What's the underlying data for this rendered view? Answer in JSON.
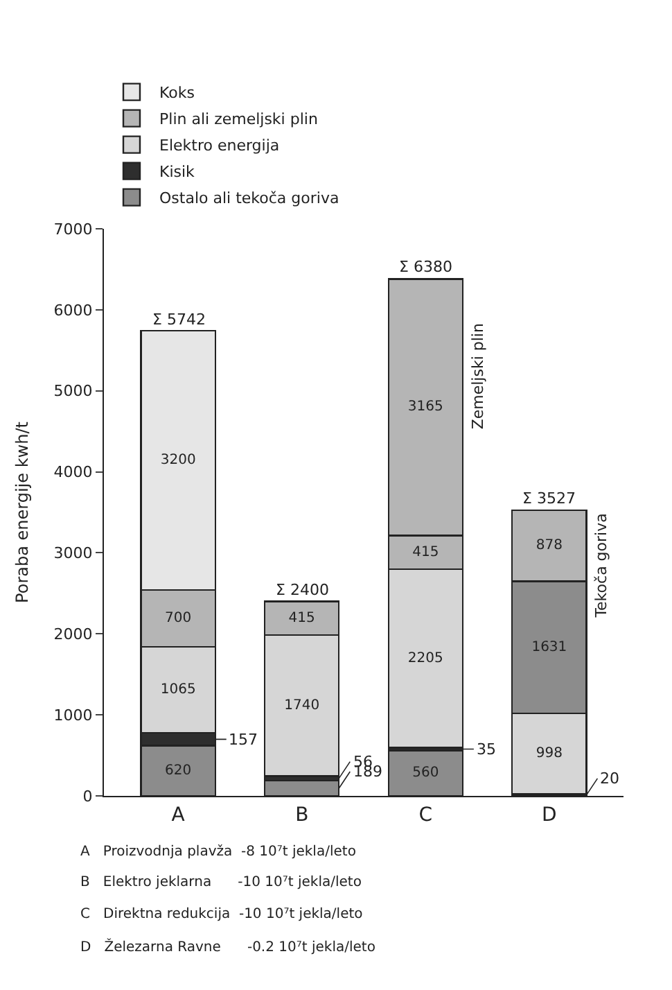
{
  "chart_data": {
    "type": "bar",
    "stacked": true,
    "ylabel": "Poraba energije kwh/t",
    "categories": [
      "A",
      "B",
      "C",
      "D"
    ],
    "series": [
      {
        "name": "Ostalo ali tekoča goriva",
        "color": "#8c8c8c",
        "values": [
          620,
          189,
          560,
          null
        ]
      },
      {
        "name": "Kisik",
        "color": "#2e2e2e",
        "values": [
          157,
          56,
          35,
          20
        ]
      },
      {
        "name": "Elektro energija",
        "color": "#d6d6d6",
        "values": [
          1065,
          1740,
          2205,
          998
        ]
      },
      {
        "color": "#8c8c8c",
        "values": [
          null,
          null,
          null,
          1631
        ]
      },
      {
        "name": "Plin ali zemeljski plin",
        "color": "#b5b5b5",
        "values": [
          700,
          415,
          415,
          878
        ]
      },
      {
        "name": "Koks",
        "color": "#e6e6e6",
        "values": [
          3200,
          null,
          null,
          null
        ]
      },
      {
        "color": "#b5b5b5",
        "values": [
          null,
          null,
          3165,
          null
        ]
      }
    ],
    "data_labels": true,
    "totals": [
      "Σ 5742",
      "Σ 2400",
      "Σ 6380",
      "Σ 3527"
    ],
    "ylim": [
      0,
      7000
    ],
    "yticks": [
      0,
      1000,
      2000,
      3000,
      4000,
      5000,
      6000,
      7000
    ],
    "grid": false,
    "legend": "top left",
    "annotations": [
      "Zemeljski plin",
      "Tekoča goriva",
      "A   Proizvodnja plavža  -8 10⁷t jekla/leto",
      "B   Elektro jeklarna      -10 10⁷t jekla/leto",
      "C   Direktna redukcija  -10 10⁷t jekla/leto",
      "D   Železarna Ravne      -0.2 10⁷t jekla/leto"
    ]
  }
}
